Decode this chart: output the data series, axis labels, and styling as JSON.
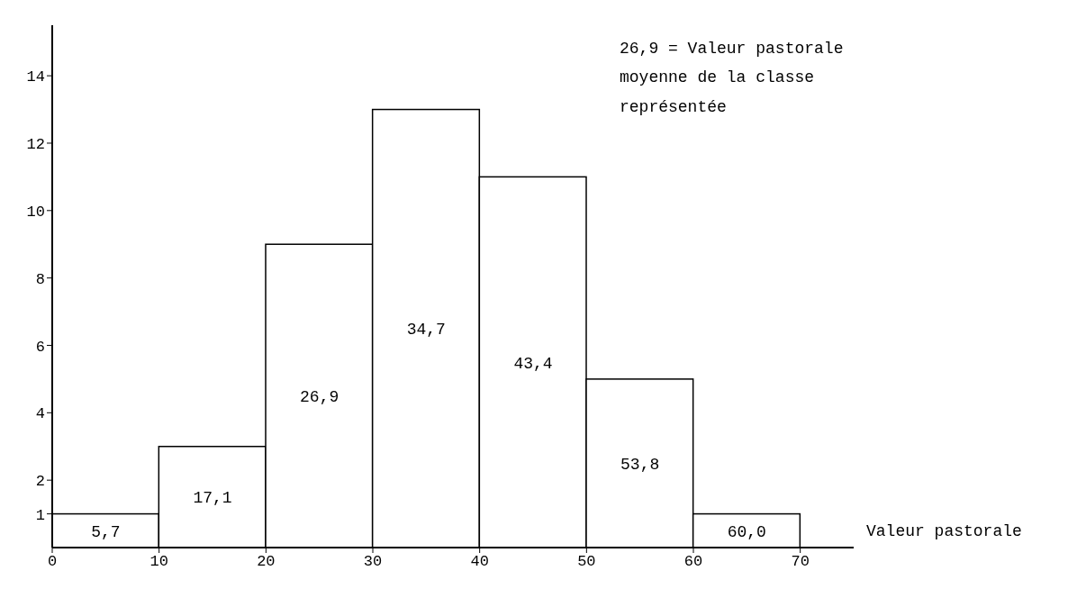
{
  "chart_data": {
    "type": "histogram",
    "bins": [
      0,
      10,
      20,
      30,
      40,
      50,
      60,
      70
    ],
    "values": [
      1,
      3,
      9,
      13,
      11,
      5,
      1
    ],
    "color": "#ffffff",
    "xlabel": "Valeur pastorale",
    "xlim": [
      0,
      75
    ],
    "xticks": [
      0,
      10,
      20,
      30,
      40,
      50,
      60,
      70
    ],
    "ylim": [
      0,
      15.5
    ],
    "yticks": [
      1,
      2,
      4,
      6,
      8,
      10,
      12,
      14
    ],
    "grid": false,
    "annotations": [
      "5,7",
      "17,1",
      "26,9",
      "34,7",
      "43,4",
      "53,8",
      "60,0",
      "26,9 = Valeur pastorale\nmoyenne de la classe\nreprésentée"
    ]
  }
}
